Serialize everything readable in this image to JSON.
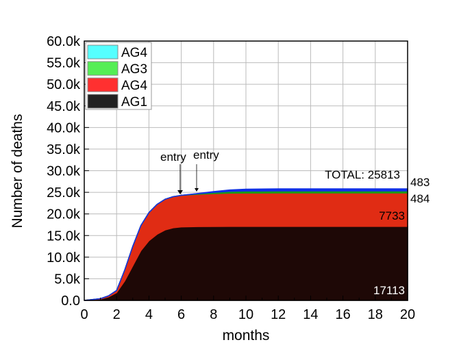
{
  "chart_data": {
    "type": "area",
    "stacked": true,
    "xlabel": "months",
    "ylabel": "Number of deaths",
    "xlim": [
      0,
      20
    ],
    "ylim": [
      0,
      60000
    ],
    "xticks": [
      0,
      2,
      4,
      6,
      8,
      10,
      12,
      14,
      16,
      18,
      20
    ],
    "yticks": [
      0,
      5000,
      10000,
      15000,
      20000,
      25000,
      30000,
      35000,
      40000,
      45000,
      50000,
      55000,
      60000
    ],
    "ytick_labels": [
      "0.0",
      "5.0k",
      "10.0k",
      "15.0k",
      "20.0k",
      "25.0k",
      "30.0k",
      "35.0k",
      "40.0k",
      "45.0k",
      "50.0k",
      "55.0k",
      "60.0k"
    ],
    "grid": true,
    "legend_position": "top-left",
    "x": [
      0,
      1,
      1.5,
      2,
      2.5,
      3,
      3.5,
      4,
      4.5,
      5,
      5.5,
      6,
      7,
      8,
      9,
      10,
      12,
      14,
      16,
      18,
      20
    ],
    "series": [
      {
        "name": "AG1",
        "color": "#1e0806",
        "legend_color": "#222222",
        "values": [
          0,
          300,
          800,
          1800,
          4500,
          8000,
          11500,
          13800,
          15300,
          16300,
          16800,
          17000,
          17080,
          17100,
          17110,
          17113,
          17113,
          17113,
          17113,
          17113,
          17113
        ]
      },
      {
        "name": "AG4",
        "color": "#e02c14",
        "legend_color": "#ff3030",
        "values": [
          0,
          100,
          250,
          500,
          2500,
          4500,
          5800,
          6500,
          6900,
          7100,
          7200,
          7300,
          7450,
          7600,
          7700,
          7720,
          7733,
          7733,
          7733,
          7733,
          7733
        ]
      },
      {
        "name": "AG3",
        "color": "#1a9a1a",
        "legend_color": "#55ee55",
        "values": [
          0,
          0,
          0,
          0,
          0,
          0,
          0,
          0,
          0,
          0,
          0,
          0,
          150,
          300,
          420,
          470,
          484,
          484,
          484,
          484,
          484
        ]
      },
      {
        "name": "AG4",
        "color": "#1030e8",
        "legend_color": "#55ffff",
        "values": [
          0,
          0,
          0,
          0,
          0,
          0,
          0,
          0,
          0,
          0,
          0,
          0,
          40,
          180,
          320,
          420,
          483,
          483,
          483,
          483,
          483
        ]
      }
    ],
    "annotations": [
      {
        "text": "entry",
        "x": 6
      },
      {
        "text": "entry",
        "x": 7
      },
      {
        "text": "TOTAL: 25813"
      },
      {
        "text": "483"
      },
      {
        "text": "484"
      },
      {
        "text": "7733"
      },
      {
        "text": "17113"
      }
    ]
  }
}
